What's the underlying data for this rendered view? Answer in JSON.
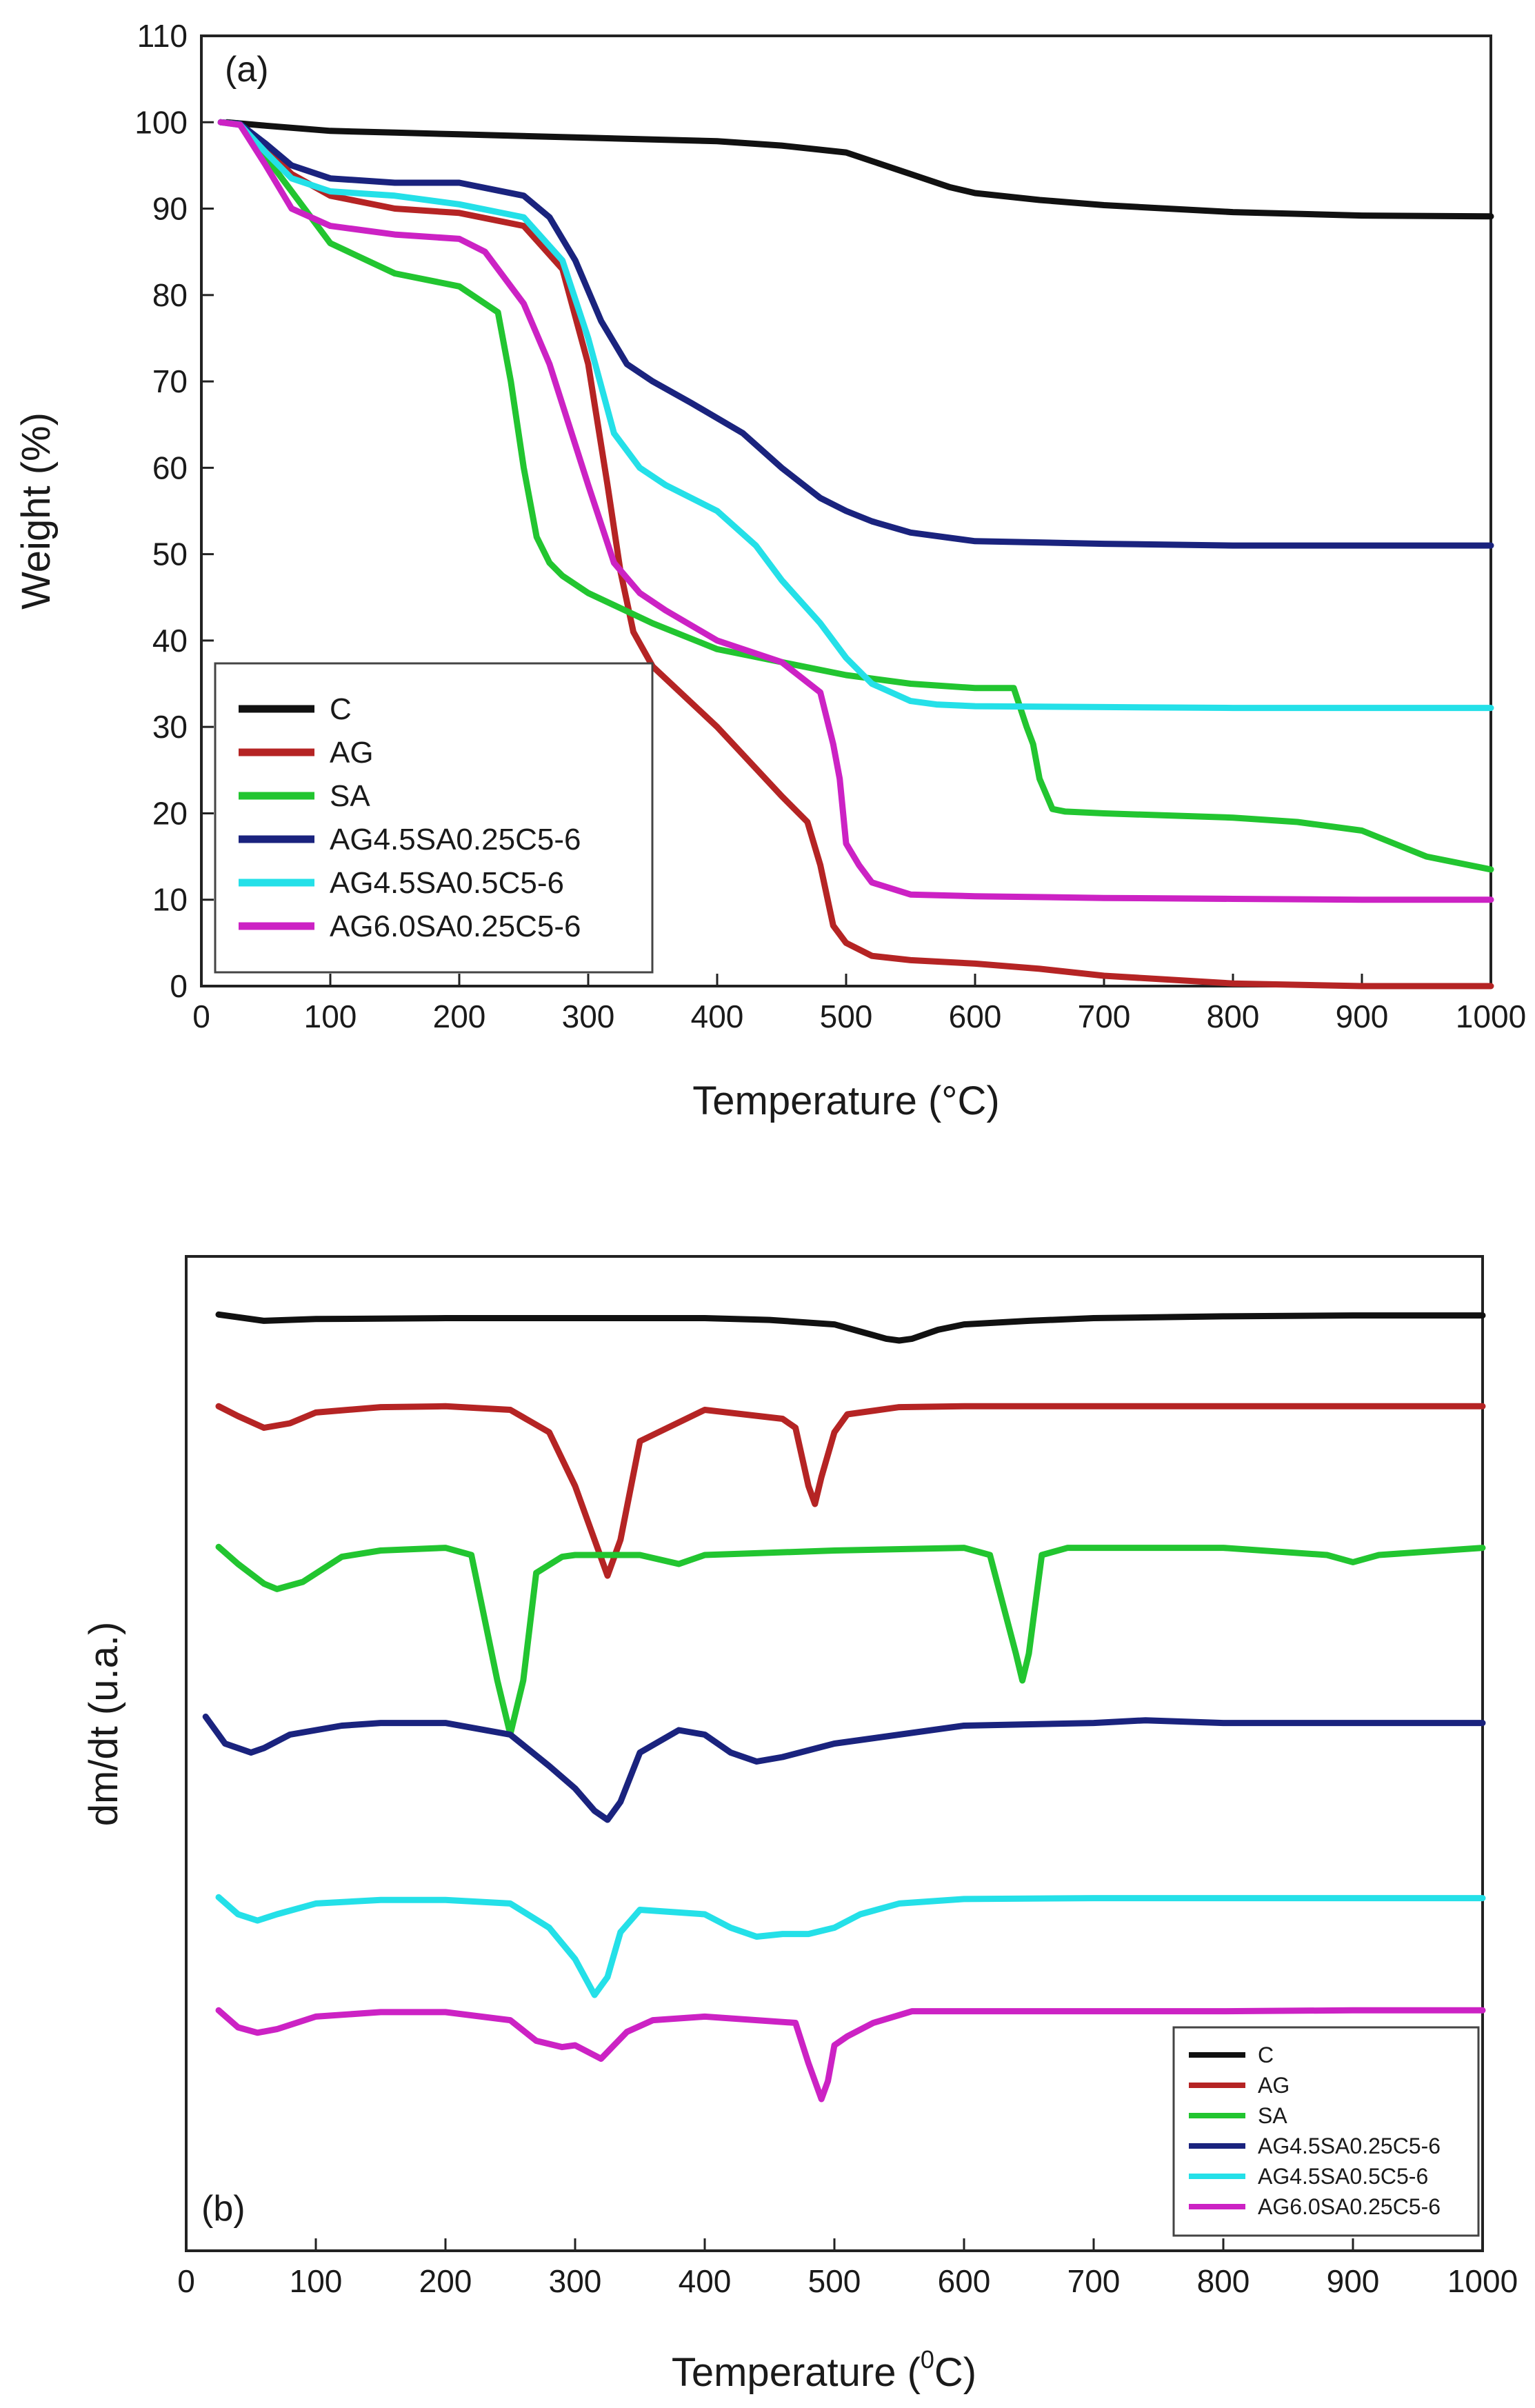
{
  "chart_data": [
    {
      "panel": "(a)",
      "type": "line",
      "xlabel": "Temperature (°C)",
      "ylabel": "Weight (%)",
      "xlim": [
        0,
        1000
      ],
      "ylim": [
        0,
        110
      ],
      "xticks": [
        0,
        100,
        200,
        300,
        400,
        500,
        600,
        700,
        800,
        900,
        1000
      ],
      "yticks": [
        0,
        10,
        20,
        30,
        40,
        50,
        60,
        70,
        80,
        90,
        100,
        110
      ],
      "legend": [
        "C",
        "AG",
        "SA",
        "AG4.5SA0.25C5-6",
        "AG4.5SA0.5C5-6",
        "AG6.0SA0.25C5-6"
      ],
      "series": [
        {
          "name": "C",
          "color": "#111111",
          "x": [
            20,
            50,
            100,
            150,
            200,
            300,
            400,
            450,
            500,
            520,
            550,
            580,
            600,
            650,
            700,
            800,
            900,
            1000
          ],
          "y": [
            100,
            99.6,
            99,
            98.8,
            98.6,
            98.2,
            97.8,
            97.3,
            96.5,
            95.5,
            94,
            92.5,
            91.8,
            91,
            90.4,
            89.6,
            89.2,
            89.1
          ]
        },
        {
          "name": "AG",
          "color": "#b52424",
          "x": [
            15,
            30,
            50,
            70,
            100,
            150,
            200,
            250,
            280,
            300,
            315,
            325,
            335,
            350,
            400,
            450,
            470,
            480,
            490,
            500,
            520,
            550,
            600,
            650,
            700,
            800,
            900,
            1000
          ],
          "y": [
            100,
            99.8,
            97,
            94,
            91.5,
            90,
            89.5,
            88,
            83,
            72,
            58,
            48,
            41,
            37,
            30,
            22,
            19,
            14,
            7,
            5,
            3.5,
            3,
            2.6,
            2,
            1.2,
            0.3,
            0,
            0
          ]
        },
        {
          "name": "SA",
          "color": "#22c530",
          "x": [
            15,
            30,
            50,
            70,
            100,
            150,
            200,
            230,
            240,
            250,
            260,
            270,
            280,
            300,
            350,
            400,
            450,
            500,
            550,
            600,
            630,
            640,
            645,
            650,
            660,
            670,
            700,
            800,
            850,
            900,
            950,
            1000
          ],
          "y": [
            100,
            99.8,
            96,
            92,
            86,
            82.5,
            81,
            78,
            70,
            60,
            52,
            49,
            47.5,
            45.5,
            42,
            39,
            37.5,
            36,
            35,
            34.5,
            34.5,
            30,
            28,
            24,
            20.5,
            20.2,
            20,
            19.5,
            19,
            18,
            15,
            13.5
          ]
        },
        {
          "name": "AG4.5SA0.25C5-6",
          "color": "#1a237e",
          "x": [
            15,
            30,
            50,
            70,
            100,
            150,
            200,
            250,
            270,
            290,
            310,
            330,
            350,
            380,
            420,
            450,
            480,
            500,
            520,
            550,
            600,
            700,
            800,
            900,
            1000
          ],
          "y": [
            100,
            99.8,
            97.5,
            95,
            93.5,
            93,
            93,
            91.5,
            89,
            84,
            77,
            72,
            70,
            67.5,
            64,
            60,
            56.5,
            55,
            53.8,
            52.5,
            51.5,
            51.2,
            51,
            51,
            51
          ]
        },
        {
          "name": "AG4.5SA0.5C5-6",
          "color": "#24e0e8",
          "x": [
            15,
            30,
            50,
            70,
            100,
            150,
            200,
            250,
            280,
            300,
            320,
            340,
            360,
            400,
            430,
            450,
            480,
            500,
            520,
            550,
            570,
            600,
            700,
            800,
            900,
            1000
          ],
          "y": [
            100,
            99.7,
            96.5,
            93.5,
            92,
            91.5,
            90.5,
            89,
            84,
            75,
            64,
            60,
            58,
            55,
            51,
            47,
            42,
            38,
            35,
            33,
            32.6,
            32.4,
            32.3,
            32.2,
            32.2,
            32.2
          ]
        },
        {
          "name": "AG6.0SA0.25C5-6",
          "color": "#cc22c4",
          "x": [
            15,
            30,
            50,
            70,
            100,
            150,
            200,
            220,
            250,
            270,
            300,
            320,
            340,
            360,
            400,
            450,
            480,
            490,
            495,
            500,
            510,
            520,
            550,
            600,
            700,
            800,
            900,
            1000
          ],
          "y": [
            100,
            99.7,
            95,
            90,
            88,
            87,
            86.5,
            85,
            79,
            72,
            58,
            49,
            45.5,
            43.5,
            40,
            37.5,
            34,
            28,
            24,
            16.5,
            14,
            12,
            10.6,
            10.4,
            10.2,
            10.1,
            10,
            10
          ]
        }
      ]
    },
    {
      "panel": "(b)",
      "type": "line",
      "xlabel": "Temperature (",
      "xlabel_sup": "0",
      "xlabel_tail": "C)",
      "ylabel": "dm/dt (u.a.)",
      "xlim": [
        0,
        1000
      ],
      "xticks": [
        0,
        100,
        200,
        300,
        400,
        500,
        600,
        700,
        800,
        900,
        1000
      ],
      "legend": [
        "C",
        "AG",
        "SA",
        "AG4.5SA0.25C5-6",
        "AG4.5SA0.5C5-6",
        "AG6.0SA0.25C5-6"
      ],
      "series": [
        {
          "name": "C",
          "color": "#111111",
          "x": [
            25,
            40,
            60,
            100,
            200,
            300,
            400,
            450,
            500,
            520,
            540,
            550,
            560,
            580,
            600,
            650,
            700,
            800,
            900,
            1000
          ],
          "y": [
            -1,
            -4,
            -8,
            -6,
            -5,
            -5,
            -5,
            -7,
            -12,
            -20,
            -28,
            -30,
            -28,
            -18,
            -12,
            -8,
            -5,
            -3,
            -2,
            -2
          ]
        },
        {
          "name": "AG",
          "color": "#b52424",
          "x": [
            25,
            40,
            60,
            80,
            100,
            150,
            200,
            250,
            280,
            300,
            315,
            325,
            335,
            350,
            400,
            460,
            470,
            480,
            485,
            490,
            500,
            510,
            550,
            600,
            700,
            800,
            900,
            1000
          ],
          "y": [
            -1,
            -12,
            -25,
            -20,
            -8,
            -2,
            -1,
            -5,
            -30,
            -90,
            -150,
            -190,
            -150,
            -40,
            -5,
            -15,
            -25,
            -90,
            -110,
            -80,
            -30,
            -10,
            -2,
            -1,
            -1,
            -1,
            -1,
            -1
          ]
        },
        {
          "name": "SA",
          "color": "#22c530",
          "x": [
            25,
            40,
            60,
            70,
            90,
            120,
            150,
            200,
            220,
            240,
            250,
            260,
            270,
            290,
            300,
            350,
            380,
            400,
            500,
            600,
            620,
            640,
            645,
            650,
            660,
            680,
            800,
            880,
            900,
            920,
            1000
          ],
          "y": [
            -1,
            -20,
            -42,
            -48,
            -40,
            -12,
            -5,
            -2,
            -10,
            -150,
            -210,
            -150,
            -30,
            -12,
            -10,
            -10,
            -20,
            -10,
            -5,
            -2,
            -10,
            -120,
            -150,
            -120,
            -10,
            -2,
            -2,
            -10,
            -18,
            -10,
            -2
          ]
        },
        {
          "name": "AG4.5SA0.25C5-6",
          "color": "#1a237e",
          "x": [
            15,
            30,
            50,
            60,
            80,
            120,
            150,
            200,
            250,
            280,
            300,
            315,
            325,
            335,
            350,
            380,
            400,
            420,
            440,
            460,
            500,
            600,
            700,
            740,
            800,
            900,
            1000
          ],
          "y": [
            5,
            -25,
            -35,
            -30,
            -15,
            -5,
            -2,
            -2,
            -15,
            -50,
            -75,
            -100,
            -110,
            -90,
            -35,
            -10,
            -15,
            -35,
            -45,
            -40,
            -25,
            -5,
            -2,
            1,
            -2,
            -2,
            -2
          ]
        },
        {
          "name": "AG4.5SA0.5C5-6",
          "color": "#24e0e8",
          "x": [
            25,
            40,
            55,
            70,
            100,
            150,
            200,
            250,
            280,
            300,
            315,
            325,
            335,
            350,
            400,
            420,
            440,
            460,
            480,
            500,
            520,
            550,
            600,
            700,
            800,
            900,
            1000
          ],
          "y": [
            -1,
            -20,
            -27,
            -20,
            -8,
            -4,
            -4,
            -8,
            -35,
            -70,
            -110,
            -90,
            -40,
            -15,
            -20,
            -35,
            -45,
            -42,
            -42,
            -35,
            -20,
            -8,
            -3,
            -2,
            -2,
            -2,
            -2
          ]
        },
        {
          "name": "AG6.0SA0.25C5-6",
          "color": "#cc22c4",
          "x": [
            25,
            40,
            55,
            70,
            100,
            150,
            200,
            250,
            270,
            290,
            300,
            320,
            340,
            360,
            400,
            470,
            480,
            490,
            495,
            500,
            510,
            530,
            560,
            600,
            700,
            800,
            900,
            1000
          ],
          "y": [
            -1,
            -20,
            -26,
            -22,
            -8,
            -3,
            -3,
            -12,
            -35,
            -42,
            -40,
            -55,
            -25,
            -12,
            -8,
            -15,
            -60,
            -100,
            -80,
            -40,
            -30,
            -15,
            -2,
            -2,
            -2,
            -2,
            -1,
            -1
          ]
        }
      ]
    }
  ]
}
